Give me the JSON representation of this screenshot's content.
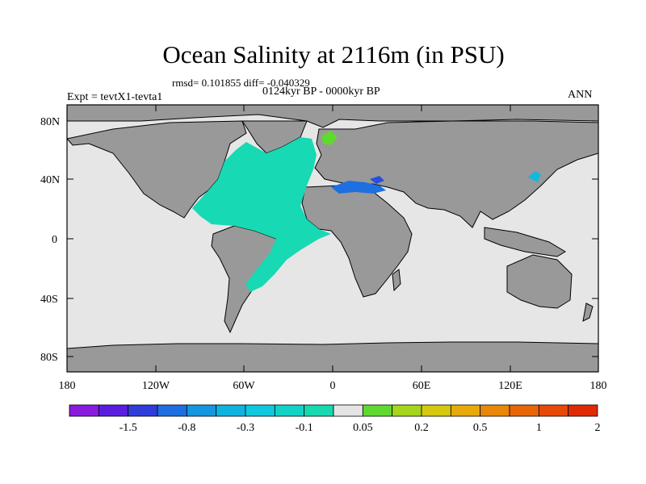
{
  "title": "Ocean Salinity at 2116m (in PSU)",
  "stats": "rmsd= 0.101855  diff= -0.040329",
  "period": "0124kyr BP - 0000kyr BP",
  "experiment": "Expt = tevtX1-tevta1",
  "season": "ANN",
  "lat_labels": [
    "80N",
    "40N",
    "0",
    "40S",
    "80S"
  ],
  "lon_labels": [
    "180",
    "120W",
    "60W",
    "0",
    "60E",
    "120E",
    "180"
  ],
  "colorbar": {
    "colors": [
      "#8a1ce0",
      "#5a1de0",
      "#2f3ddb",
      "#1d6fe0",
      "#1596e0",
      "#0fb3e0",
      "#0fc8dd",
      "#12d2c8",
      "#16d9b0",
      "#e4e4e4",
      "#5fd92e",
      "#a5d619",
      "#d6c80f",
      "#e8a90a",
      "#e88708",
      "#e86608",
      "#e84808",
      "#e02a06"
    ],
    "labels": [
      "-1.5",
      "-0.8",
      "-0.3",
      "-0.1",
      "0.05",
      "0.2",
      "0.5",
      "1",
      "2"
    ]
  },
  "colors": {
    "land": "#999999",
    "ocean_neutral": "#e6e6e6",
    "atlantic_anomaly": "#17d9b3",
    "mediterranean": "#1e6fe0",
    "black_sea": "#2a4ede",
    "norwegian_sea": "#5fd92e",
    "north_pacific_patch": "#14b8dd"
  }
}
